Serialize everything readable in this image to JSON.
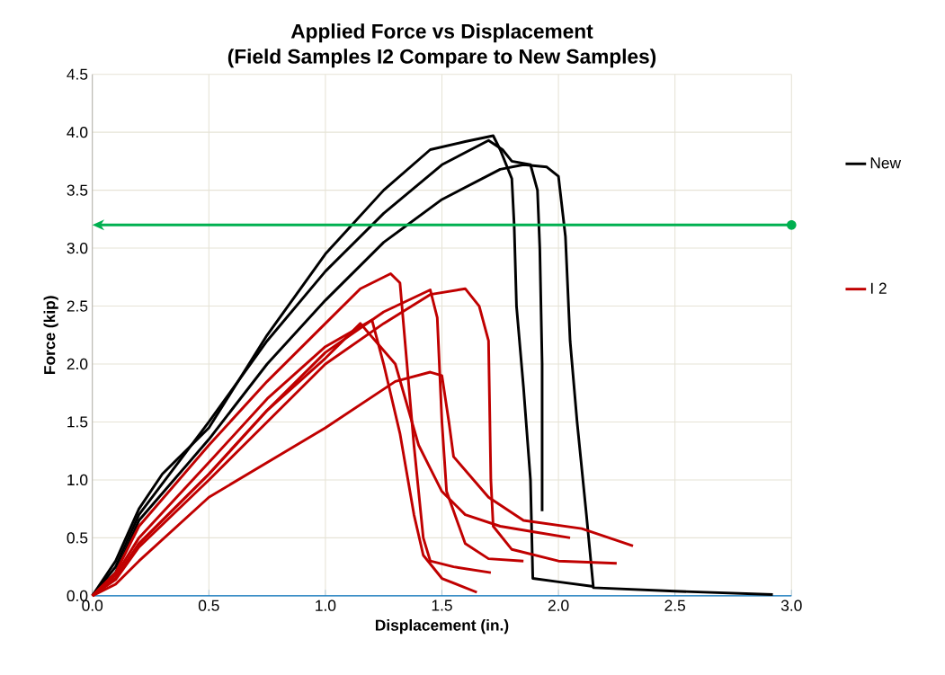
{
  "chart_data": {
    "type": "line",
    "title": "Applied Force vs Displacement",
    "subtitle": "(Field Samples I2 Compare to New Samples)",
    "xlabel": "Displacement (in.)",
    "ylabel": "Force (kip)",
    "xlim": [
      0,
      3
    ],
    "ylim": [
      0,
      4.5
    ],
    "xticks": [
      {
        "value": 0,
        "label": "0.0"
      },
      {
        "value": 0.5,
        "label": "0.5"
      },
      {
        "value": 1,
        "label": "1.0"
      },
      {
        "value": 1.5,
        "label": "1.5"
      },
      {
        "value": 2,
        "label": "2.0"
      },
      {
        "value": 2.5,
        "label": "2.5"
      },
      {
        "value": 3,
        "label": "3.0"
      }
    ],
    "yticks": [
      {
        "value": 0,
        "label": "0.0"
      },
      {
        "value": 0.5,
        "label": "0.5"
      },
      {
        "value": 1,
        "label": "1.0"
      },
      {
        "value": 1.5,
        "label": "1.5"
      },
      {
        "value": 2,
        "label": "2.0"
      },
      {
        "value": 2.5,
        "label": "2.5"
      },
      {
        "value": 3,
        "label": "3.0"
      },
      {
        "value": 3.5,
        "label": "3.5"
      },
      {
        "value": 4,
        "label": "4.0"
      },
      {
        "value": 4.5,
        "label": "4.5"
      }
    ],
    "grid": true,
    "legend": "right",
    "ref_lines": [
      {
        "axis": "y",
        "value": 3.2,
        "color": "#00b050"
      }
    ],
    "series": [
      {
        "name": "New",
        "color": "#000000",
        "x": [
          0,
          0.1,
          0.2,
          0.3,
          0.4,
          0.5,
          0.75,
          1.0,
          1.25,
          1.45,
          1.6,
          1.72,
          1.75,
          1.8,
          1.81,
          1.82,
          1.85,
          1.88,
          1.89,
          2.0,
          2.15
        ],
        "values": [
          0,
          0.3,
          0.75,
          1.05,
          1.25,
          1.45,
          2.25,
          2.95,
          3.5,
          3.85,
          3.92,
          3.97,
          3.85,
          3.6,
          3.2,
          2.5,
          1.8,
          1.0,
          0.15,
          0.12,
          0.08
        ]
      },
      {
        "color": "#000000",
        "x": [
          0,
          0.1,
          0.2,
          0.5,
          0.75,
          1.0,
          1.25,
          1.5,
          1.7,
          1.76,
          1.8,
          1.88,
          1.91,
          1.92,
          1.93,
          1.93
        ],
        "values": [
          0,
          0.25,
          0.7,
          1.5,
          2.2,
          2.8,
          3.3,
          3.72,
          3.93,
          3.85,
          3.75,
          3.72,
          3.5,
          3.0,
          2.0,
          0.73
        ]
      },
      {
        "color": "#000000",
        "x": [
          0,
          0.1,
          0.2,
          0.5,
          0.75,
          1.0,
          1.25,
          1.5,
          1.75,
          1.85,
          1.95,
          2.0,
          2.03,
          2.05,
          2.08,
          2.12,
          2.15,
          2.5,
          2.92
        ],
        "values": [
          0,
          0.2,
          0.65,
          1.35,
          2.0,
          2.55,
          3.05,
          3.42,
          3.68,
          3.72,
          3.7,
          3.62,
          3.1,
          2.2,
          1.5,
          0.7,
          0.07,
          0.04,
          0.01
        ]
      },
      {
        "name": "I 2",
        "color": "#c00000",
        "x": [
          0,
          0.1,
          0.2,
          0.5,
          0.75,
          1.0,
          1.15,
          1.28,
          1.32,
          1.35,
          1.38,
          1.42,
          1.45,
          1.55,
          1.71
        ],
        "values": [
          0,
          0.2,
          0.6,
          1.3,
          1.85,
          2.35,
          2.65,
          2.78,
          2.7,
          2.0,
          1.3,
          0.5,
          0.3,
          0.25,
          0.2
        ]
      },
      {
        "color": "#c00000",
        "x": [
          0,
          0.1,
          0.2,
          0.5,
          0.75,
          1.0,
          1.2,
          1.25,
          1.32,
          1.38,
          1.42,
          1.5,
          1.65
        ],
        "values": [
          0,
          0.18,
          0.5,
          1.15,
          1.7,
          2.15,
          2.38,
          2.0,
          1.4,
          0.7,
          0.35,
          0.15,
          0.03
        ]
      },
      {
        "color": "#c00000",
        "x": [
          0,
          0.1,
          0.2,
          0.5,
          0.75,
          1.0,
          1.25,
          1.45,
          1.48,
          1.5,
          1.52,
          1.6,
          1.7,
          1.85
        ],
        "values": [
          0,
          0.15,
          0.45,
          1.05,
          1.6,
          2.1,
          2.45,
          2.64,
          2.4,
          1.5,
          0.9,
          0.45,
          0.32,
          0.3
        ]
      },
      {
        "color": "#c00000",
        "x": [
          0,
          0.1,
          0.2,
          0.5,
          0.75,
          1.0,
          1.25,
          1.45,
          1.6,
          1.66,
          1.7,
          1.71,
          1.72,
          1.8,
          2.0,
          2.25
        ],
        "values": [
          0,
          0.14,
          0.42,
          1.0,
          1.5,
          2.0,
          2.35,
          2.6,
          2.65,
          2.5,
          2.2,
          1.0,
          0.6,
          0.4,
          0.3,
          0.28
        ]
      },
      {
        "color": "#c00000",
        "x": [
          0,
          0.1,
          0.2,
          0.5,
          0.75,
          1.0,
          1.15,
          1.3,
          1.4,
          1.45,
          1.5,
          1.6,
          1.75,
          1.9,
          2.05
        ],
        "values": [
          0,
          0.15,
          0.45,
          1.05,
          1.6,
          2.05,
          2.35,
          2.0,
          1.3,
          1.1,
          0.9,
          0.7,
          0.6,
          0.55,
          0.5
        ]
      },
      {
        "color": "#c00000",
        "x": [
          0,
          0.1,
          0.2,
          0.5,
          1.0,
          1.3,
          1.45,
          1.5,
          1.53,
          1.55,
          1.7,
          1.85,
          2.1,
          2.32
        ],
        "values": [
          0,
          0.1,
          0.3,
          0.85,
          1.45,
          1.85,
          1.93,
          1.9,
          1.5,
          1.2,
          0.85,
          0.65,
          0.58,
          0.43
        ]
      }
    ]
  }
}
